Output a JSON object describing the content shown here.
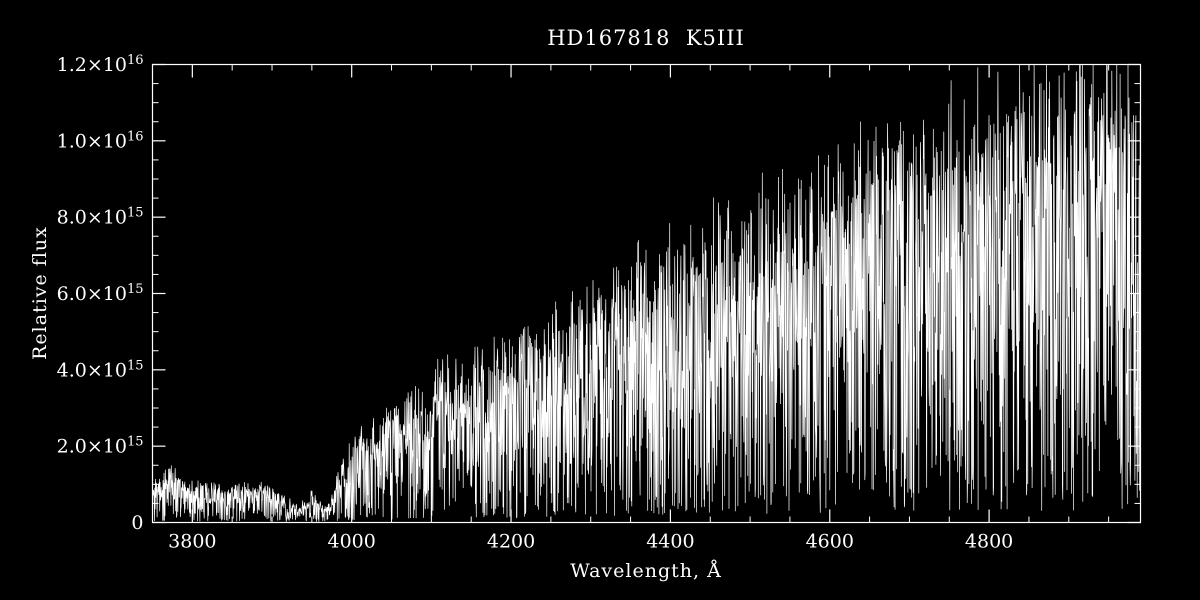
{
  "chart_data": {
    "type": "line",
    "title": "HD167818  K5III",
    "xlabel": "Wavelength, Å",
    "ylabel": "Relative flux",
    "xlim": [
      3750,
      4990
    ],
    "ylim": [
      0,
      1.2e+16
    ],
    "x_major_ticks": [
      3800,
      4000,
      4200,
      4400,
      4600,
      4800
    ],
    "x_minor_step": 50,
    "y_major_ticks": [
      0,
      2000000000000000.0,
      4000000000000000.0,
      6000000000000000.0,
      8000000000000000.0,
      1e+16,
      1.2e+16
    ],
    "y_minor_step": 500000000000000.0,
    "grid": false,
    "legend": "none",
    "background_color": "#000000",
    "axis_color": "#ffffff",
    "line_color": "#ffffff",
    "series": [
      {
        "name": "HD167818 K5III spectrum",
        "description": "Densely noisy stellar absorption spectrum rising from ~1e15 at 3750 Å to ~1.15e16 near 4950 Å, with a deep trough near 3930–3970 Å and deep narrow absorption lines throughout. continuum_points give the approximate upper envelope read from the plot, as [wavelength_angstrom, flux_in_1e15].",
        "continuum_points": [
          [
            3750,
            0.9
          ],
          [
            3770,
            1.5
          ],
          [
            3790,
            1.0
          ],
          [
            3810,
            1.0
          ],
          [
            3840,
            0.9
          ],
          [
            3870,
            1.0
          ],
          [
            3900,
            0.9
          ],
          [
            3925,
            0.55
          ],
          [
            3933,
            0.35
          ],
          [
            3950,
            0.8
          ],
          [
            3968,
            0.35
          ],
          [
            3985,
            1.3
          ],
          [
            4000,
            2.1
          ],
          [
            4030,
            2.6
          ],
          [
            4060,
            3.0
          ],
          [
            4100,
            3.7
          ],
          [
            4150,
            4.1
          ],
          [
            4200,
            4.5
          ],
          [
            4230,
            4.6
          ],
          [
            4260,
            5.2
          ],
          [
            4300,
            5.6
          ],
          [
            4340,
            6.2
          ],
          [
            4380,
            6.7
          ],
          [
            4420,
            7.0
          ],
          [
            4460,
            7.5
          ],
          [
            4500,
            7.9
          ],
          [
            4540,
            8.3
          ],
          [
            4580,
            8.7
          ],
          [
            4620,
            9.0
          ],
          [
            4660,
            9.3
          ],
          [
            4700,
            9.7
          ],
          [
            4740,
            10.0
          ],
          [
            4780,
            10.3
          ],
          [
            4820,
            10.7
          ],
          [
            4860,
            10.9
          ],
          [
            4900,
            11.3
          ],
          [
            4940,
            11.6
          ],
          [
            4990,
            11.2
          ]
        ],
        "noise": {
          "seed": 7,
          "n_points": 3000,
          "deep_line_fraction": 0.3,
          "max_depth": 0.97
        }
      }
    ]
  }
}
